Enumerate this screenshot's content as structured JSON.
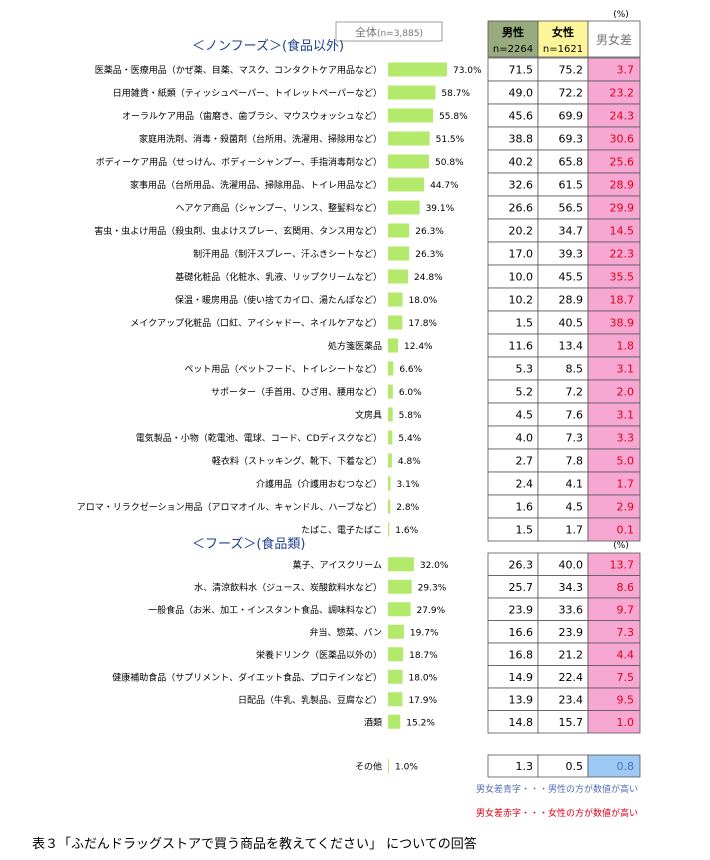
{
  "header": {
    "unit": "(%)",
    "total_label": "全体",
    "total_n": "(n=3,885)",
    "male_label": "男性",
    "male_n": "n=2264",
    "female_label": "女性",
    "female_n": "n=1621",
    "diff_label": "男女差"
  },
  "colors": {
    "bar": "#b4ea6c",
    "male_header": "#98ab7e",
    "female_header": "#fdf59a",
    "diff_pink": "#f7a8d2",
    "diff_blue": "#9ccaf4",
    "diff_red_text": "#e0001a",
    "diff_blue_text": "#5570b8",
    "section_title": "#1f3f8f"
  },
  "legend": {
    "blue_note": "男女差青字・・・男性の方が数値が高い",
    "red_note": "男女差赤字・・・女性の方が数値が高い"
  },
  "caption": "表３「ふだんドラッグストアで買う商品を教えてください」 についての回答",
  "chart_data": {
    "type": "bar",
    "orientation": "horizontal",
    "value_unit": "%",
    "sections": [
      {
        "title": "＜ノンフーズ＞(食品以外)",
        "rows": [
          {
            "label": "医薬品・医療用品（かぜ薬、目薬、マスク、コンタクトケア用品など）",
            "total": 73.0,
            "male": 71.5,
            "female": 75.2,
            "diff": 3.7
          },
          {
            "label": "日用雑貨・紙類（ティッシュペーパー、トイレットペーパーなど）",
            "total": 58.7,
            "male": 49.0,
            "female": 72.2,
            "diff": 23.2
          },
          {
            "label": "オーラルケア用品（歯磨き、歯ブラシ、マウスウォッシュなど）",
            "total": 55.8,
            "male": 45.6,
            "female": 69.9,
            "diff": 24.3
          },
          {
            "label": "家庭用洗剤、消毒・殺菌剤（台所用、洗濯用、掃除用など）",
            "total": 51.5,
            "male": 38.8,
            "female": 69.3,
            "diff": 30.6
          },
          {
            "label": "ボディーケア用品（せっけん、ボディーシャンプー、手指消毒剤など）",
            "total": 50.8,
            "male": 40.2,
            "female": 65.8,
            "diff": 25.6
          },
          {
            "label": "家事用品（台所用品、洗濯用品、掃除用品、トイレ用品など）",
            "total": 44.7,
            "male": 32.6,
            "female": 61.5,
            "diff": 28.9
          },
          {
            "label": "ヘアケア商品（シャンプー、リンス、整髪料など）",
            "total": 39.1,
            "male": 26.6,
            "female": 56.5,
            "diff": 29.9
          },
          {
            "label": "害虫・虫よけ用品（殺虫剤、虫よけスプレー、玄関用、タンス用など）",
            "total": 26.3,
            "male": 20.2,
            "female": 34.7,
            "diff": 14.5
          },
          {
            "label": "制汗用品（制汗スプレー、汗ふきシートなど）",
            "total": 26.3,
            "male": 17.0,
            "female": 39.3,
            "diff": 22.3
          },
          {
            "label": "基礎化粧品（化粧水、乳液、リップクリームなど）",
            "total": 24.8,
            "male": 10.0,
            "female": 45.5,
            "diff": 35.5
          },
          {
            "label": "保温・暖房用品（使い捨てカイロ、湯たんぽなど）",
            "total": 18.0,
            "male": 10.2,
            "female": 28.9,
            "diff": 18.7
          },
          {
            "label": "メイクアップ化粧品（口紅、アイシャドー、ネイルケアなど）",
            "total": 17.8,
            "male": 1.5,
            "female": 40.5,
            "diff": 38.9
          },
          {
            "label": "処方箋医薬品",
            "total": 12.4,
            "male": 11.6,
            "female": 13.4,
            "diff": 1.8
          },
          {
            "label": "ペット用品（ペットフード、トイレシートなど）",
            "total": 6.6,
            "male": 5.3,
            "female": 8.5,
            "diff": 3.1
          },
          {
            "label": "サポーター（手首用、ひざ用、腰用など）",
            "total": 6.0,
            "male": 5.2,
            "female": 7.2,
            "diff": 2.0
          },
          {
            "label": "文房具",
            "total": 5.8,
            "male": 4.5,
            "female": 7.6,
            "diff": 3.1
          },
          {
            "label": "電気製品・小物（乾電池、電球、コード、CDディスクなど）",
            "total": 5.4,
            "male": 4.0,
            "female": 7.3,
            "diff": 3.3
          },
          {
            "label": "軽衣料（ストッキング、靴下、下着など）",
            "total": 4.8,
            "male": 2.7,
            "female": 7.8,
            "diff": 5.0
          },
          {
            "label": "介護用品（介護用おむつなど）",
            "total": 3.1,
            "male": 2.4,
            "female": 4.1,
            "diff": 1.7
          },
          {
            "label": "アロマ・リラクゼーション用品（アロマオイル、キャンドル、ハーブなど）",
            "total": 2.8,
            "male": 1.6,
            "female": 4.5,
            "diff": 2.9
          },
          {
            "label": "たばこ、電子たばこ",
            "total": 1.6,
            "male": 1.5,
            "female": 1.7,
            "diff": 0.1
          }
        ]
      },
      {
        "title": "＜フーズ＞(食品類)",
        "unit": "(%)",
        "rows": [
          {
            "label": "菓子、アイスクリーム",
            "total": 32.0,
            "male": 26.3,
            "female": 40.0,
            "diff": 13.7
          },
          {
            "label": "水、清涼飲料水（ジュース、炭酸飲料水など）",
            "total": 29.3,
            "male": 25.7,
            "female": 34.3,
            "diff": 8.6
          },
          {
            "label": "一般食品（お米、加工・インスタント食品、調味料など）",
            "total": 27.9,
            "male": 23.9,
            "female": 33.6,
            "diff": 9.7
          },
          {
            "label": "弁当、惣菜、パン",
            "total": 19.7,
            "male": 16.6,
            "female": 23.9,
            "diff": 7.3
          },
          {
            "label": "栄養ドリンク（医薬品以外の）",
            "total": 18.7,
            "male": 16.8,
            "female": 21.2,
            "diff": 4.4
          },
          {
            "label": "健康補助食品（サプリメント、ダイエット食品、プロテインなど）",
            "total": 18.0,
            "male": 14.9,
            "female": 22.4,
            "diff": 7.5
          },
          {
            "label": "日配品（牛乳、乳製品、豆腐など）",
            "total": 17.9,
            "male": 13.9,
            "female": 23.4,
            "diff": 9.5
          },
          {
            "label": "酒類",
            "total": 15.2,
            "male": 14.8,
            "female": 15.7,
            "diff": 1.0
          }
        ]
      }
    ],
    "other": {
      "label": "その他",
      "total": 1.0,
      "male": 1.3,
      "female": 0.5,
      "diff": 0.8,
      "diff_direction": "male_higher"
    }
  }
}
